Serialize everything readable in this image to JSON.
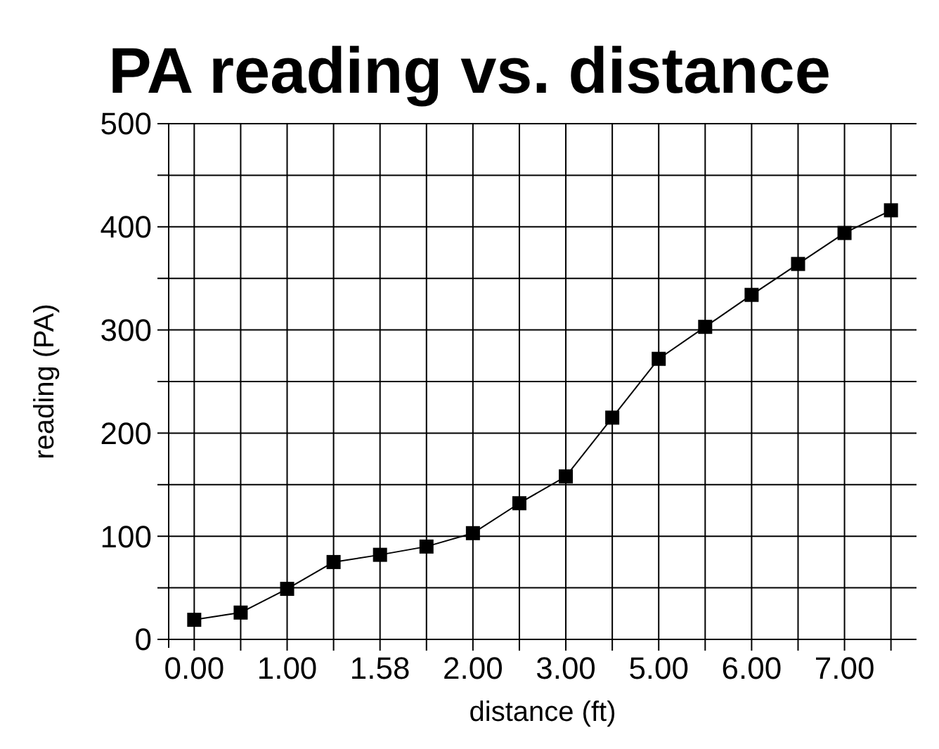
{
  "chart_data": {
    "type": "line",
    "title": "PA reading vs. distance",
    "xlabel": "distance (ft)",
    "ylabel": "reading (PA)",
    "categories": [
      "0.00",
      null,
      "1.00",
      null,
      "1.58",
      null,
      "2.00",
      null,
      "3.00",
      null,
      "5.00",
      null,
      "6.00",
      null,
      "7.00",
      null
    ],
    "series": [
      {
        "color": "#000000",
        "values": [
          19,
          26,
          49,
          75,
          82,
          90,
          103,
          132,
          158,
          215,
          272,
          303,
          334,
          364,
          394,
          416
        ]
      }
    ],
    "ylim": [
      0,
      500
    ],
    "yticks": [
      0,
      {
        "value": 50,
        "label": null
      },
      100,
      {
        "value": 150,
        "label": null
      },
      200,
      {
        "value": 250,
        "label": null
      },
      300,
      {
        "value": 350,
        "label": null
      },
      400,
      {
        "value": 450,
        "label": null
      },
      500
    ],
    "grid": true,
    "marker": "square",
    "line_style": "solid"
  }
}
